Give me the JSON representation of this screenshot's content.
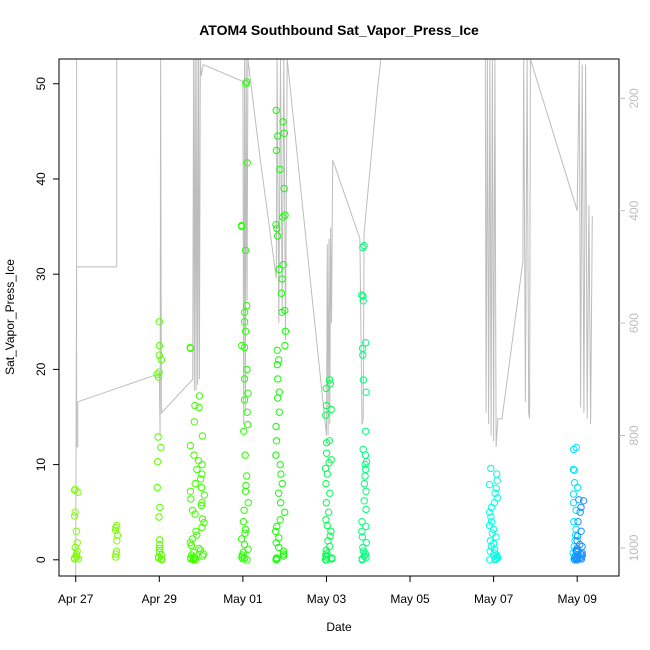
{
  "chart_data": {
    "type": "scatter",
    "title": "ATOM4 Southbound Sat_Vapor_Press_Ice",
    "xlabel": "Date",
    "ylabel": "Sat_Vapor_Press_Ice",
    "x_ticks": [
      "Apr 27",
      "Apr 29",
      "May 01",
      "May 03",
      "May 05",
      "May 07",
      "May 09"
    ],
    "x_tick_days": [
      0,
      2,
      4,
      6,
      8,
      10,
      12
    ],
    "xlim_days": [
      -0.4,
      13.0
    ],
    "ylim": [
      -1.7,
      52.6
    ],
    "y_ticks": [
      0,
      10,
      20,
      30,
      40,
      50
    ],
    "right_axis": {
      "ticks": [
        200,
        400,
        600,
        800,
        1000
      ],
      "range": [
        130,
        1050
      ],
      "inverted": true,
      "color": "#bdbdbd"
    },
    "colors": {
      "overlay_line": "#bdbdbd",
      "start_color": "#7fff00",
      "end_color": "#1e90ff"
    },
    "scatter_clusters": [
      {
        "day": 0.02,
        "spread": 0.05,
        "color": "#80ff00",
        "values": [
          0.1,
          0.1,
          0.2,
          0.3,
          0.4,
          0.6,
          0.9,
          1.3,
          1.8,
          3.0,
          4.6,
          5.0,
          7.1,
          7.3,
          7.4
        ]
      },
      {
        "day": 0.98,
        "spread": 0.04,
        "color": "#7aff00",
        "values": [
          0.3,
          0.6,
          0.9,
          2.0,
          2.6,
          3.1,
          3.4,
          3.6
        ]
      },
      {
        "day": 2.0,
        "spread": 0.06,
        "color": "#5cff00",
        "values": [
          0.0,
          0.1,
          0.2,
          0.3,
          0.5,
          0.8,
          1.2,
          1.6,
          2.1,
          4.5,
          5.5,
          7.6,
          10.3,
          11.8,
          12.9,
          19.2,
          19.5,
          19.7,
          21.0,
          21.5,
          22.5,
          25.0
        ]
      },
      {
        "day": 2.9,
        "spread": 0.18,
        "color": "#40ff00",
        "values": [
          0.0,
          0.0,
          0.1,
          0.1,
          0.2,
          0.2,
          0.3,
          0.4,
          0.5,
          0.6,
          0.8,
          1.0,
          1.2,
          1.5,
          1.8,
          2.2,
          2.6,
          3.0,
          3.4,
          3.9,
          4.3,
          4.8,
          5.2,
          5.7,
          6.0,
          6.4,
          6.8,
          7.2,
          7.6,
          8.0,
          8.5,
          9.0,
          9.5,
          10.0,
          10.4,
          11.0,
          12.0,
          13.0,
          14.5,
          16.0,
          16.2,
          17.2,
          22.2,
          22.3
        ]
      },
      {
        "day": 4.05,
        "spread": 0.08,
        "color": "#26ff00",
        "values": [
          0.0,
          0.1,
          0.2,
          0.3,
          0.5,
          0.8,
          1.1,
          1.6,
          2.2,
          2.8,
          3.2,
          4.0,
          5.2,
          6.0,
          7.2,
          7.8,
          8.8,
          11.0,
          13.5,
          14.2,
          15.5,
          16.8,
          17.5,
          19.0,
          20.0,
          22.3,
          22.5,
          24.0,
          25.0,
          26.0,
          26.7,
          32.5,
          35.0,
          35.1,
          41.7,
          50.0,
          50.2
        ]
      },
      {
        "day": 4.9,
        "spread": 0.12,
        "color": "#10ff00",
        "values": [
          0.0,
          0.1,
          0.2,
          0.4,
          0.6,
          0.9,
          1.3,
          1.8,
          2.3,
          3.0,
          3.5,
          4.2,
          5.0,
          6.0,
          7.0,
          8.0,
          9.0,
          10.0,
          11.0,
          12.5,
          14.0,
          15.5,
          17.0,
          17.6,
          19.0,
          20.5,
          21.0,
          22.0,
          22.5,
          24.0,
          26.0,
          26.2,
          28.0,
          29.5,
          30.5,
          31.0,
          34.0,
          34.8,
          35.2,
          36.0,
          36.2,
          39.0,
          41.0,
          43.0,
          44.5,
          44.8,
          46.0,
          47.2
        ]
      },
      {
        "day": 6.05,
        "spread": 0.08,
        "color": "#00ff50",
        "values": [
          0.0,
          0.0,
          0.1,
          0.2,
          0.3,
          0.5,
          0.7,
          1.0,
          1.4,
          2.0,
          2.5,
          3.0,
          3.6,
          4.2,
          5.0,
          6.0,
          7.0,
          8.0,
          9.0,
          9.6,
          10.2,
          10.5,
          11.2,
          12.3,
          12.5,
          15.2,
          15.8,
          16.2,
          18.0,
          18.5,
          18.9
        ]
      },
      {
        "day": 6.9,
        "spread": 0.06,
        "color": "#00ff7a",
        "values": [
          0.0,
          0.1,
          0.2,
          0.4,
          0.6,
          0.9,
          1.3,
          1.8,
          2.4,
          3.0,
          3.5,
          4.0,
          5.3,
          6.2,
          7.2,
          8.0,
          8.8,
          9.5,
          10.0,
          10.3,
          11.0,
          11.6,
          13.5,
          17.6,
          18.9,
          21.5,
          22.2,
          22.8,
          27.2,
          27.7,
          27.8,
          32.8,
          33.0
        ]
      },
      {
        "day": 10.0,
        "spread": 0.1,
        "color": "#00ffe6",
        "values": [
          0.0,
          0.0,
          0.1,
          0.1,
          0.2,
          0.3,
          0.4,
          0.5,
          0.7,
          0.9,
          1.1,
          1.4,
          1.7,
          2.0,
          2.4,
          2.8,
          3.2,
          3.6,
          4.0,
          4.5,
          5.0,
          5.5,
          6.0,
          6.5,
          7.0,
          7.5,
          7.9,
          8.3,
          9.0,
          9.6
        ]
      },
      {
        "day": 11.95,
        "spread": 0.06,
        "color": "#00e5ff",
        "values": [
          0.0,
          0.1,
          0.2,
          0.4,
          0.7,
          1.0,
          1.4,
          2.0,
          2.6,
          3.2,
          4.0,
          5.2,
          6.0,
          6.9,
          7.6,
          8.1,
          9.4,
          9.5,
          11.6,
          11.8
        ]
      },
      {
        "day": 12.05,
        "spread": 0.11,
        "color": "#1e90ff",
        "values": [
          0.0,
          0.0,
          0.0,
          0.1,
          0.1,
          0.1,
          0.2,
          0.2,
          0.3,
          0.3,
          0.4,
          0.5,
          0.6,
          0.7,
          0.8,
          0.9,
          1.0,
          1.2,
          1.4,
          1.6,
          2.0,
          2.5,
          3.0,
          4.0,
          5.0,
          5.5,
          6.2,
          6.3
        ]
      }
    ],
    "altitude_path": [
      [
        0.0,
        1050
      ],
      [
        0.02,
        500
      ],
      [
        0.98,
        500
      ],
      [
        0.98,
        130
      ],
      [
        0.02,
        130
      ],
      [
        0.02,
        820
      ],
      [
        0.05,
        820
      ],
      [
        0.05,
        740
      ],
      [
        2.0,
        690
      ],
      [
        2.02,
        800
      ],
      [
        2.03,
        130
      ],
      [
        2.05,
        760
      ],
      [
        2.8,
        700
      ],
      [
        2.82,
        130
      ],
      [
        2.84,
        720
      ],
      [
        2.86,
        130
      ],
      [
        2.88,
        720
      ],
      [
        2.9,
        130
      ],
      [
        2.92,
        710
      ],
      [
        2.94,
        130
      ],
      [
        2.96,
        700
      ],
      [
        2.98,
        130
      ],
      [
        3.0,
        160
      ],
      [
        3.05,
        140
      ],
      [
        4.0,
        170
      ],
      [
        4.02,
        780
      ],
      [
        4.04,
        130
      ],
      [
        4.06,
        760
      ],
      [
        4.08,
        130
      ],
      [
        4.1,
        560
      ],
      [
        4.12,
        130
      ],
      [
        4.4,
        300
      ],
      [
        4.8,
        520
      ],
      [
        4.82,
        130
      ],
      [
        4.86,
        600
      ],
      [
        4.9,
        130
      ],
      [
        4.94,
        580
      ],
      [
        4.98,
        130
      ],
      [
        5.02,
        630
      ],
      [
        5.06,
        130
      ],
      [
        6.0,
        800
      ],
      [
        6.02,
        460
      ],
      [
        6.04,
        800
      ],
      [
        6.06,
        450
      ],
      [
        6.08,
        780
      ],
      [
        6.1,
        430
      ],
      [
        6.12,
        600
      ],
      [
        6.15,
        310
      ],
      [
        6.2,
        320
      ],
      [
        6.8,
        450
      ],
      [
        6.85,
        780
      ],
      [
        6.88,
        770
      ],
      [
        6.9,
        440
      ],
      [
        7.2,
        200
      ],
      [
        7.3,
        130
      ],
      [
        9.8,
        130
      ],
      [
        9.82,
        760
      ],
      [
        9.85,
        130
      ],
      [
        9.88,
        780
      ],
      [
        9.91,
        130
      ],
      [
        9.94,
        800
      ],
      [
        9.97,
        130
      ],
      [
        10.0,
        810
      ],
      [
        10.03,
        130
      ],
      [
        10.06,
        820
      ],
      [
        10.1,
        770
      ],
      [
        10.2,
        770
      ],
      [
        10.7,
        490
      ],
      [
        10.72,
        130
      ],
      [
        10.76,
        740
      ],
      [
        10.8,
        130
      ],
      [
        10.84,
        760
      ],
      [
        10.86,
        770
      ],
      [
        10.88,
        130
      ],
      [
        12.0,
        400
      ],
      [
        12.05,
        130
      ],
      [
        12.08,
        750
      ],
      [
        12.12,
        140
      ],
      [
        12.16,
        760
      ],
      [
        12.2,
        140
      ],
      [
        12.24,
        770
      ],
      [
        12.28,
        390
      ],
      [
        12.32,
        780
      ],
      [
        12.36,
        410
      ]
    ]
  }
}
